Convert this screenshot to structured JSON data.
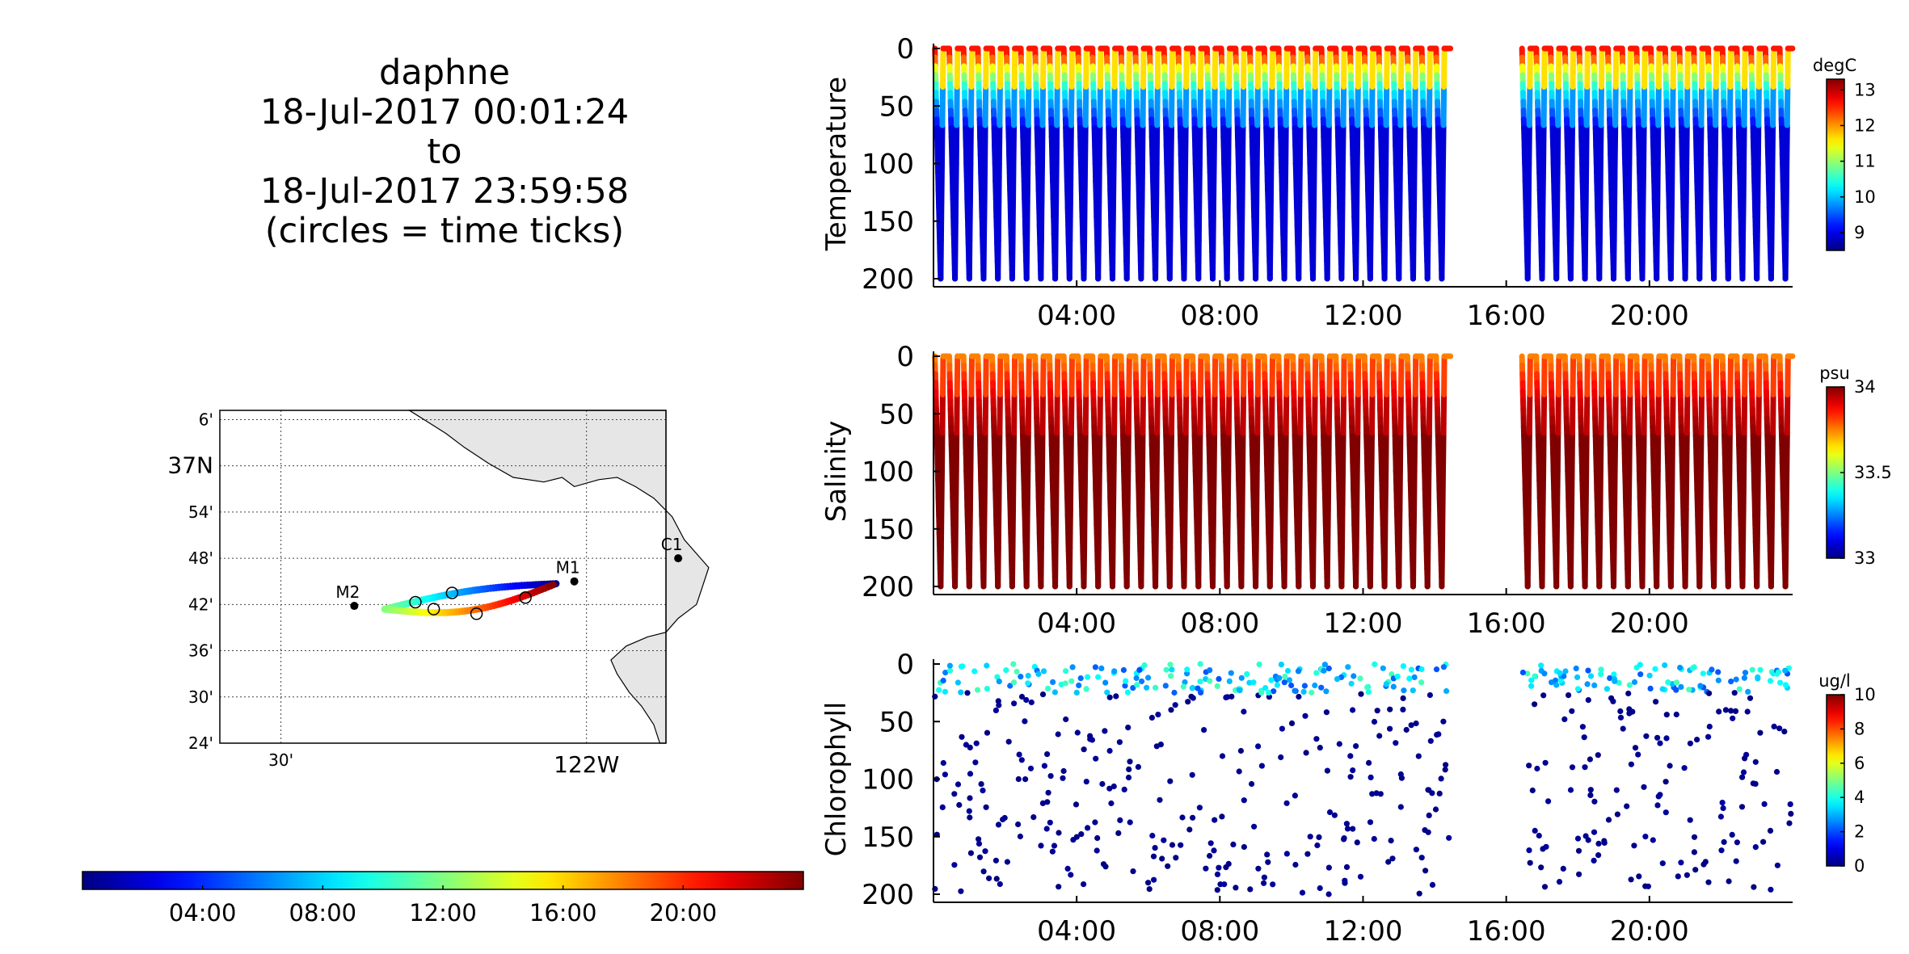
{
  "title": {
    "line1": "daphne",
    "line2": "18-Jul-2017 00:01:24",
    "line3": "to",
    "line4": "18-Jul-2017 23:59:58",
    "line5": "(circles = time ticks)"
  },
  "chart_data": [
    {
      "type": "scatter",
      "panel": "temperature",
      "ylabel": "Temperature",
      "y_reversed": true,
      "ylim": [
        0,
        200
      ],
      "yticks": [
        0,
        50,
        100,
        150,
        200
      ],
      "xlim": [
        0,
        24
      ],
      "xticks": [
        4,
        8,
        12,
        16,
        20
      ],
      "xticklabels": [
        "04:00",
        "08:00",
        "12:00",
        "16:00",
        "20:00"
      ],
      "depth_max": 200,
      "gap": [
        14.1,
        16.1
      ],
      "colorbar": {
        "label": "degC",
        "min": 8.5,
        "max": 13.3,
        "ticks": [
          9,
          10,
          11,
          12,
          13
        ],
        "ticklabels": [
          "9",
          "10",
          "11",
          "12",
          "13"
        ]
      },
      "profile": {
        "surface_value": 12.6,
        "deep_value": 8.9,
        "thermocline_depth": 40
      }
    },
    {
      "type": "scatter",
      "panel": "salinity",
      "ylabel": "Salinity",
      "y_reversed": true,
      "ylim": [
        0,
        200
      ],
      "yticks": [
        0,
        50,
        100,
        150,
        200
      ],
      "xlim": [
        0,
        24
      ],
      "xticks": [
        4,
        8,
        12,
        16,
        20
      ],
      "xticklabels": [
        "04:00",
        "08:00",
        "12:00",
        "16:00",
        "20:00"
      ],
      "depth_max": 200,
      "gap": [
        14.1,
        16.1
      ],
      "colorbar": {
        "label": "psu",
        "min": 33,
        "max": 34,
        "ticks": [
          33,
          33.5,
          34
        ],
        "ticklabels": [
          "33",
          "33.5",
          "34"
        ]
      },
      "profile": {
        "surface_value": 33.75,
        "deep_value": 34.0,
        "thermocline_depth": 40
      }
    },
    {
      "type": "scatter",
      "panel": "chlorophyll",
      "ylabel": "Chlorophyll",
      "y_reversed": true,
      "ylim": [
        0,
        200
      ],
      "yticks": [
        0,
        50,
        100,
        150,
        200
      ],
      "xlim": [
        0,
        24
      ],
      "xticks": [
        4,
        8,
        12,
        16,
        20
      ],
      "xticklabels": [
        "04:00",
        "08:00",
        "12:00",
        "16:00",
        "20:00"
      ],
      "depth_max": 200,
      "gap": [
        14.1,
        16.1
      ],
      "colorbar": {
        "label": "ug/l",
        "min": 0,
        "max": 10,
        "ticks": [
          0,
          2,
          4,
          6,
          8,
          10
        ],
        "ticklabels": [
          "0",
          "2",
          "4",
          "6",
          "8",
          "10"
        ]
      },
      "profile": {
        "surface_value": 3.5,
        "deep_value": 0.1,
        "thermocline_depth": 40
      }
    }
  ],
  "map": {
    "lon_range": [
      -122.6,
      -121.87
    ],
    "lat_range": [
      36.4,
      37.12
    ],
    "lat_ticks": [
      {
        "value": 37.1,
        "label": "6'"
      },
      {
        "value": 37.0,
        "label": "37°N"
      },
      {
        "value": 36.9,
        "label": "54'"
      },
      {
        "value": 36.8,
        "label": "48'"
      },
      {
        "value": 36.7,
        "label": "42'"
      },
      {
        "value": 36.6,
        "label": "36'"
      },
      {
        "value": 36.5,
        "label": "30'"
      },
      {
        "value": 36.4,
        "label": "24'"
      }
    ],
    "lon_ticks": [
      {
        "value": -122.5,
        "label": "30'"
      },
      {
        "value": -122.0,
        "label": "122°W"
      }
    ],
    "moorings": [
      {
        "name": "M1",
        "lon": -122.02,
        "lat": 36.75
      },
      {
        "name": "M2",
        "lon": -122.38,
        "lat": 36.697
      },
      {
        "name": "C1",
        "lon": -121.85,
        "lat": 36.8
      }
    ],
    "track_start": {
      "lon": -122.05,
      "lat": 36.745
    },
    "track_west": {
      "lon": -122.33,
      "lat": 36.69
    },
    "track_end": {
      "lon": -122.05,
      "lat": 36.745
    }
  },
  "time_colorbar": {
    "min": 0,
    "max": 24,
    "ticks": [
      4,
      8,
      12,
      16,
      20
    ],
    "ticklabels": [
      "04:00",
      "08:00",
      "12:00",
      "16:00",
      "20:00"
    ]
  }
}
